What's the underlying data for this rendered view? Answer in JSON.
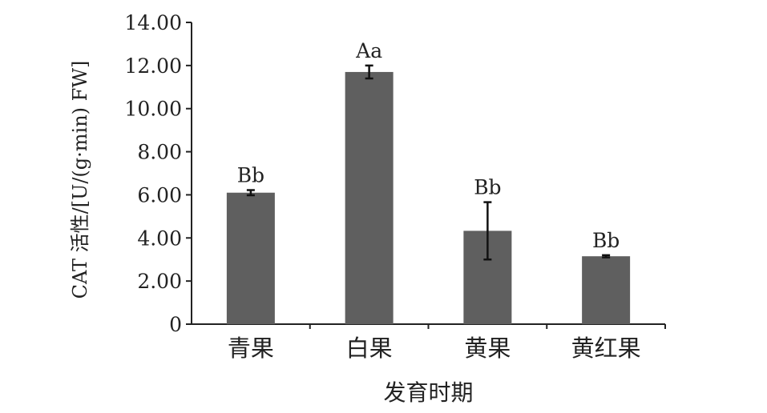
{
  "chart_data": {
    "type": "bar",
    "categories": [
      "青果",
      "白果",
      "黄果",
      "黄红果"
    ],
    "values": [
      6.1,
      11.7,
      4.33,
      3.15
    ],
    "errors": [
      0.12,
      0.3,
      1.33,
      0.05
    ],
    "significance": [
      "Bb",
      "Aa",
      "Bb",
      "Bb"
    ],
    "xlabel": "发育时期",
    "ylabel": "CAT 活性/[U/(g·min) FW]",
    "ylim": [
      0,
      14
    ],
    "yticks": [
      0,
      2,
      4,
      6,
      8,
      10,
      12,
      14
    ],
    "ytick_labels": [
      "0",
      "2.00",
      "4.00",
      "6.00",
      "8.00",
      "10.00",
      "12.00",
      "14.00"
    ],
    "bar_color": "#5f5f5f",
    "grid": false,
    "legend": "none"
  }
}
